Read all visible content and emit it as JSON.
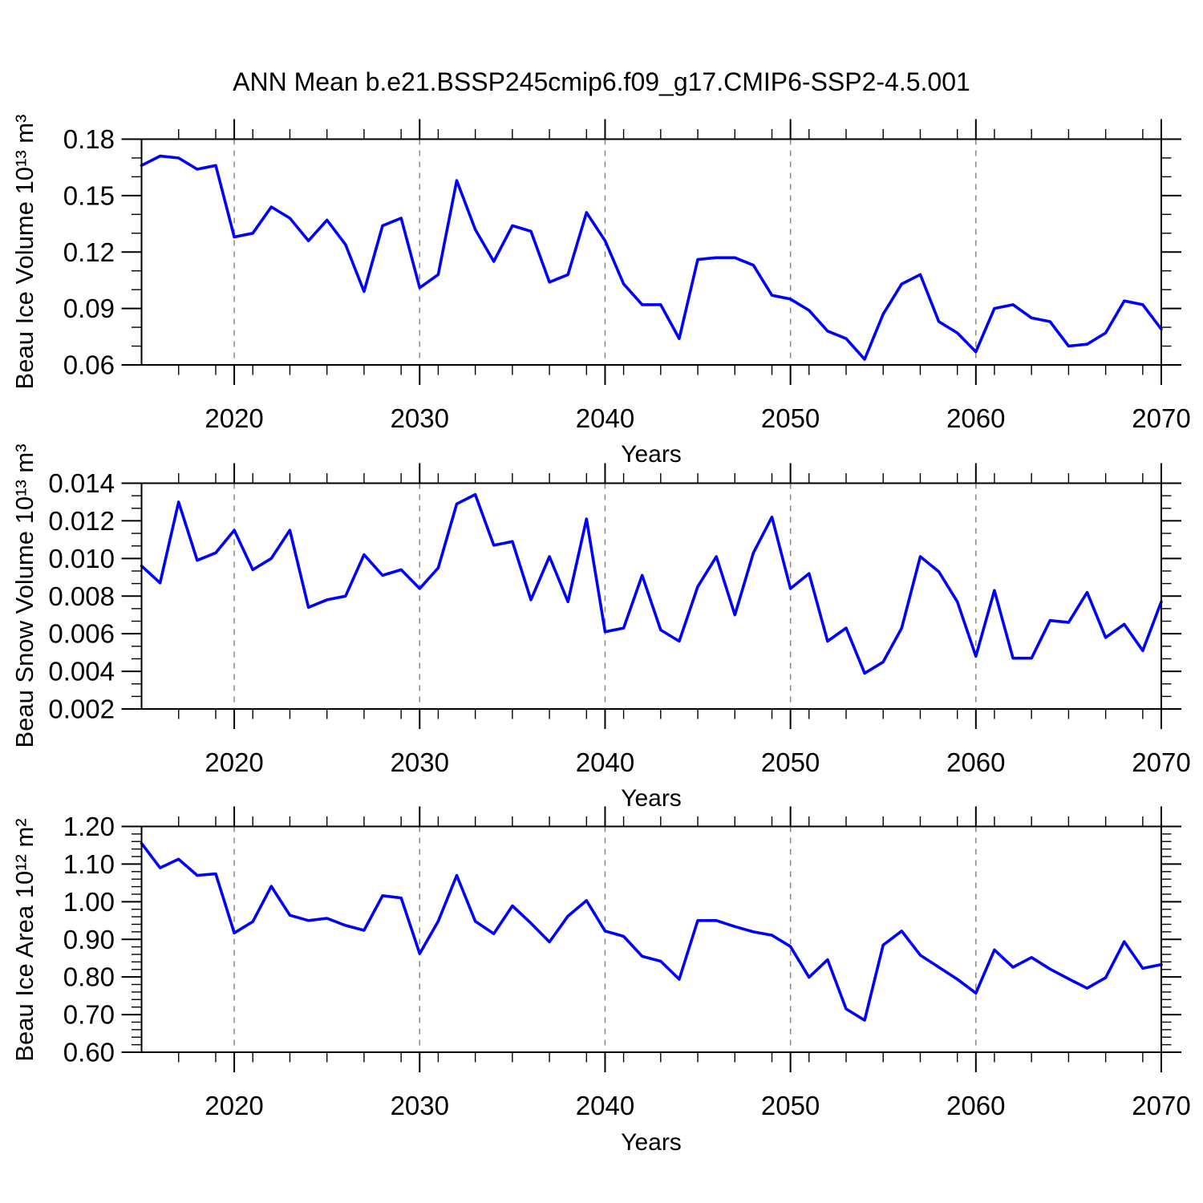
{
  "figure": {
    "title": "ANN Mean b.e21.BSSP245cmip6.f09_g17.CMIP6-SSP2-4.5.001",
    "background": "#ffffff",
    "line_color": "#0000ff",
    "grid_color": "#878787",
    "axis_color": "#000000"
  },
  "chart_data": [
    {
      "type": "line",
      "name": "beau-ice-volume",
      "ylabel": "Beau Ice Volume 10¹³ m³",
      "xlabel": "Years",
      "xlim": [
        2015,
        2070
      ],
      "ylim": [
        0.06,
        0.18
      ],
      "yticks": [
        0.06,
        0.09,
        0.12,
        0.15,
        0.18
      ],
      "ytick_labels": [
        "0.06",
        "0.09",
        "0.12",
        "0.15",
        "0.18"
      ],
      "y_minor_per_gap": 2,
      "xticks": [
        2020,
        2030,
        2040,
        2050,
        2060,
        2070
      ],
      "xtick_labels": [
        "2020",
        "2030",
        "2040",
        "2050",
        "2060",
        "2070"
      ],
      "x_minor_step": 2,
      "gridlines_x": [
        2020,
        2030,
        2040,
        2050,
        2060
      ],
      "grid_on": true,
      "legend": "none",
      "x": [
        2015,
        2016,
        2017,
        2018,
        2019,
        2020,
        2021,
        2022,
        2023,
        2024,
        2025,
        2026,
        2027,
        2028,
        2029,
        2030,
        2031,
        2032,
        2033,
        2034,
        2035,
        2036,
        2037,
        2038,
        2039,
        2040,
        2041,
        2042,
        2043,
        2044,
        2045,
        2046,
        2047,
        2048,
        2049,
        2050,
        2051,
        2052,
        2053,
        2054,
        2055,
        2056,
        2057,
        2058,
        2059,
        2060,
        2061,
        2062,
        2063,
        2064,
        2065,
        2066,
        2067,
        2068,
        2069,
        2070
      ],
      "values": [
        0.166,
        0.171,
        0.17,
        0.164,
        0.166,
        0.128,
        0.13,
        0.144,
        0.138,
        0.126,
        0.137,
        0.124,
        0.099,
        0.134,
        0.138,
        0.101,
        0.108,
        0.158,
        0.132,
        0.115,
        0.134,
        0.131,
        0.104,
        0.108,
        0.141,
        0.126,
        0.103,
        0.092,
        0.092,
        0.074,
        0.116,
        0.117,
        0.117,
        0.113,
        0.097,
        0.095,
        0.089,
        0.078,
        0.074,
        0.063,
        0.087,
        0.103,
        0.108,
        0.083,
        0.077,
        0.067,
        0.09,
        0.092,
        0.085,
        0.083,
        0.07,
        0.071,
        0.077,
        0.094,
        0.092,
        0.079
      ]
    },
    {
      "type": "line",
      "name": "beau-snow-volume",
      "ylabel": "Beau Snow Volume 10¹³ m³",
      "xlabel": "Years",
      "xlim": [
        2015,
        2070
      ],
      "ylim": [
        0.002,
        0.014
      ],
      "yticks": [
        0.002,
        0.004,
        0.006,
        0.008,
        0.01,
        0.012,
        0.014
      ],
      "ytick_labels": [
        "0.002",
        "0.004",
        "0.006",
        "0.008",
        "0.010",
        "0.012",
        "0.014"
      ],
      "y_minor_per_gap": 2,
      "xticks": [
        2020,
        2030,
        2040,
        2050,
        2060,
        2070
      ],
      "xtick_labels": [
        "2020",
        "2030",
        "2040",
        "2050",
        "2060",
        "2070"
      ],
      "x_minor_step": 2,
      "gridlines_x": [
        2020,
        2030,
        2040,
        2050,
        2060
      ],
      "grid_on": true,
      "legend": "none",
      "x": [
        2015,
        2016,
        2017,
        2018,
        2019,
        2020,
        2021,
        2022,
        2023,
        2024,
        2025,
        2026,
        2027,
        2028,
        2029,
        2030,
        2031,
        2032,
        2033,
        2034,
        2035,
        2036,
        2037,
        2038,
        2039,
        2040,
        2041,
        2042,
        2043,
        2044,
        2045,
        2046,
        2047,
        2048,
        2049,
        2050,
        2051,
        2052,
        2053,
        2054,
        2055,
        2056,
        2057,
        2058,
        2059,
        2060,
        2061,
        2062,
        2063,
        2064,
        2065,
        2066,
        2067,
        2068,
        2069,
        2070
      ],
      "values": [
        0.0096,
        0.0087,
        0.013,
        0.0099,
        0.0103,
        0.0115,
        0.0094,
        0.01,
        0.0115,
        0.0074,
        0.0078,
        0.008,
        0.0102,
        0.0091,
        0.0094,
        0.0084,
        0.0095,
        0.0129,
        0.0134,
        0.0107,
        0.0109,
        0.0078,
        0.0101,
        0.0077,
        0.0121,
        0.0061,
        0.0063,
        0.0091,
        0.0062,
        0.0056,
        0.0085,
        0.0101,
        0.007,
        0.0103,
        0.0122,
        0.0084,
        0.0092,
        0.0056,
        0.0063,
        0.0039,
        0.0045,
        0.0063,
        0.0101,
        0.0093,
        0.0077,
        0.0048,
        0.0083,
        0.0047,
        0.0047,
        0.0067,
        0.0066,
        0.0082,
        0.0058,
        0.0065,
        0.0051,
        0.0077
      ]
    },
    {
      "type": "line",
      "name": "beau-ice-area",
      "ylabel": "Beau Ice Area 10¹² m²",
      "xlabel": "Years",
      "xlim": [
        2015,
        2070
      ],
      "ylim": [
        0.6,
        1.2
      ],
      "yticks": [
        0.6,
        0.7,
        0.8,
        0.9,
        1.0,
        1.1,
        1.2
      ],
      "ytick_labels": [
        "0.60",
        "0.70",
        "0.80",
        "0.90",
        "1.00",
        "1.10",
        "1.20"
      ],
      "y_minor_per_gap": 4,
      "xticks": [
        2020,
        2030,
        2040,
        2050,
        2060,
        2070
      ],
      "xtick_labels": [
        "2020",
        "2030",
        "2040",
        "2050",
        "2060",
        "2070"
      ],
      "x_minor_step": 2,
      "gridlines_x": [
        2020,
        2030,
        2040,
        2050,
        2060
      ],
      "grid_on": true,
      "legend": "none",
      "x": [
        2015,
        2016,
        2017,
        2018,
        2019,
        2020,
        2021,
        2022,
        2023,
        2024,
        2025,
        2026,
        2027,
        2028,
        2029,
        2030,
        2031,
        2032,
        2033,
        2034,
        2035,
        2036,
        2037,
        2038,
        2039,
        2040,
        2041,
        2042,
        2043,
        2044,
        2045,
        2046,
        2047,
        2048,
        2049,
        2050,
        2051,
        2052,
        2053,
        2054,
        2055,
        2056,
        2057,
        2058,
        2059,
        2060,
        2061,
        2062,
        2063,
        2064,
        2065,
        2066,
        2067,
        2068,
        2069,
        2070
      ],
      "values": [
        1.155,
        1.09,
        1.113,
        1.07,
        1.074,
        0.917,
        0.947,
        1.041,
        0.964,
        0.95,
        0.956,
        0.937,
        0.924,
        1.016,
        1.01,
        0.862,
        0.948,
        1.07,
        0.948,
        0.915,
        0.989,
        0.943,
        0.893,
        0.962,
        1.003,
        0.922,
        0.908,
        0.855,
        0.842,
        0.794,
        0.95,
        0.95,
        0.934,
        0.92,
        0.911,
        0.881,
        0.799,
        0.846,
        0.715,
        0.685,
        0.885,
        0.922,
        0.858,
        0.826,
        0.794,
        0.757,
        0.872,
        0.826,
        0.852,
        0.821,
        0.795,
        0.77,
        0.798,
        0.894,
        0.823,
        0.833
      ]
    }
  ]
}
